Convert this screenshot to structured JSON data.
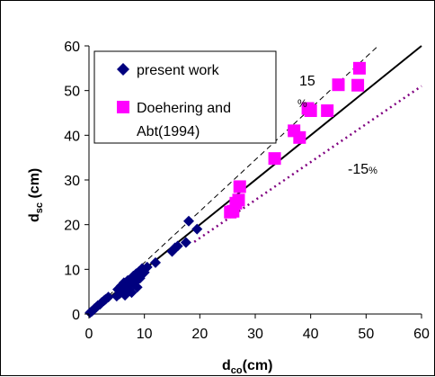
{
  "chart_data": {
    "type": "scatter",
    "xlabel": {
      "main": "d",
      "sub": "co",
      "tail": "(cm)"
    },
    "ylabel": {
      "main": "d",
      "sub": "sc",
      "tail": " (cm)"
    },
    "xlim": [
      0,
      60
    ],
    "ylim": [
      0,
      60
    ],
    "xticks": [
      "0",
      "10",
      "20",
      "30",
      "40",
      "50",
      "60"
    ],
    "yticks": [
      "0",
      "10",
      "20",
      "30",
      "40",
      "50",
      "60"
    ],
    "grid": false,
    "legend_position": "top-left",
    "colors": {
      "present": "#00007f",
      "doehering": "#ff00ff",
      "line_equal": "#000000",
      "line_minus15": "#800080"
    },
    "series": [
      {
        "name": "present work",
        "marker": "diamond",
        "points": [
          [
            0.2,
            0.3
          ],
          [
            0.5,
            0.6
          ],
          [
            0.8,
            0.9
          ],
          [
            1.0,
            1.2
          ],
          [
            1.3,
            1.5
          ],
          [
            1.6,
            1.9
          ],
          [
            2.0,
            2.2
          ],
          [
            2.3,
            2.6
          ],
          [
            2.7,
            3.0
          ],
          [
            3.0,
            3.3
          ],
          [
            3.5,
            3.8
          ],
          [
            5.0,
            4.0
          ],
          [
            5.2,
            5.5
          ],
          [
            5.5,
            4.5
          ],
          [
            5.8,
            6.3
          ],
          [
            6.0,
            5.0
          ],
          [
            6.3,
            7.0
          ],
          [
            6.5,
            4.2
          ],
          [
            6.8,
            6.2
          ],
          [
            7.0,
            7.5
          ],
          [
            7.2,
            5.5
          ],
          [
            7.5,
            6.8
          ],
          [
            7.7,
            4.8
          ],
          [
            8.0,
            8.5
          ],
          [
            8.2,
            7.0
          ],
          [
            8.5,
            9.0
          ],
          [
            8.7,
            6.0
          ],
          [
            9.0,
            9.5
          ],
          [
            9.2,
            8.0
          ],
          [
            9.6,
            10.2
          ],
          [
            10.0,
            9.3
          ],
          [
            10.5,
            10.5
          ],
          [
            12.0,
            11.5
          ],
          [
            15.0,
            14.0
          ],
          [
            15.5,
            14.8
          ],
          [
            16.0,
            15.2
          ],
          [
            17.5,
            16.0
          ],
          [
            18.0,
            20.8
          ],
          [
            19.5,
            19.0
          ]
        ]
      },
      {
        "name": "Doehering and Abt(1994)",
        "marker": "square",
        "points": [
          [
            25.5,
            22.8
          ],
          [
            26.0,
            23.0
          ],
          [
            26.5,
            24.8
          ],
          [
            27.0,
            25.5
          ],
          [
            27.2,
            28.5
          ],
          [
            33.5,
            34.8
          ],
          [
            37.0,
            41.0
          ],
          [
            38.0,
            39.5
          ],
          [
            39.5,
            46.0
          ],
          [
            40.0,
            45.5
          ],
          [
            43.0,
            45.5
          ],
          [
            45.0,
            51.3
          ],
          [
            48.5,
            51.2
          ],
          [
            48.8,
            55.0
          ]
        ]
      }
    ],
    "reference_lines": [
      {
        "style": "solid",
        "slope": 1.0,
        "x": [
          0,
          60
        ]
      },
      {
        "style": "dashed",
        "slope": 1.15,
        "x": [
          0,
          52
        ]
      },
      {
        "style": "dotted",
        "slope": 0.85,
        "x": [
          19,
          60
        ]
      }
    ],
    "annotations": {
      "plus15": "15",
      "plus15_pct": "%",
      "minus15": "-15",
      "minus15_pct": "%"
    },
    "legend_labels": {
      "present": "present work",
      "doehering_line1": "Doehering and",
      "doehering_line2": "Abt(1994)"
    }
  }
}
